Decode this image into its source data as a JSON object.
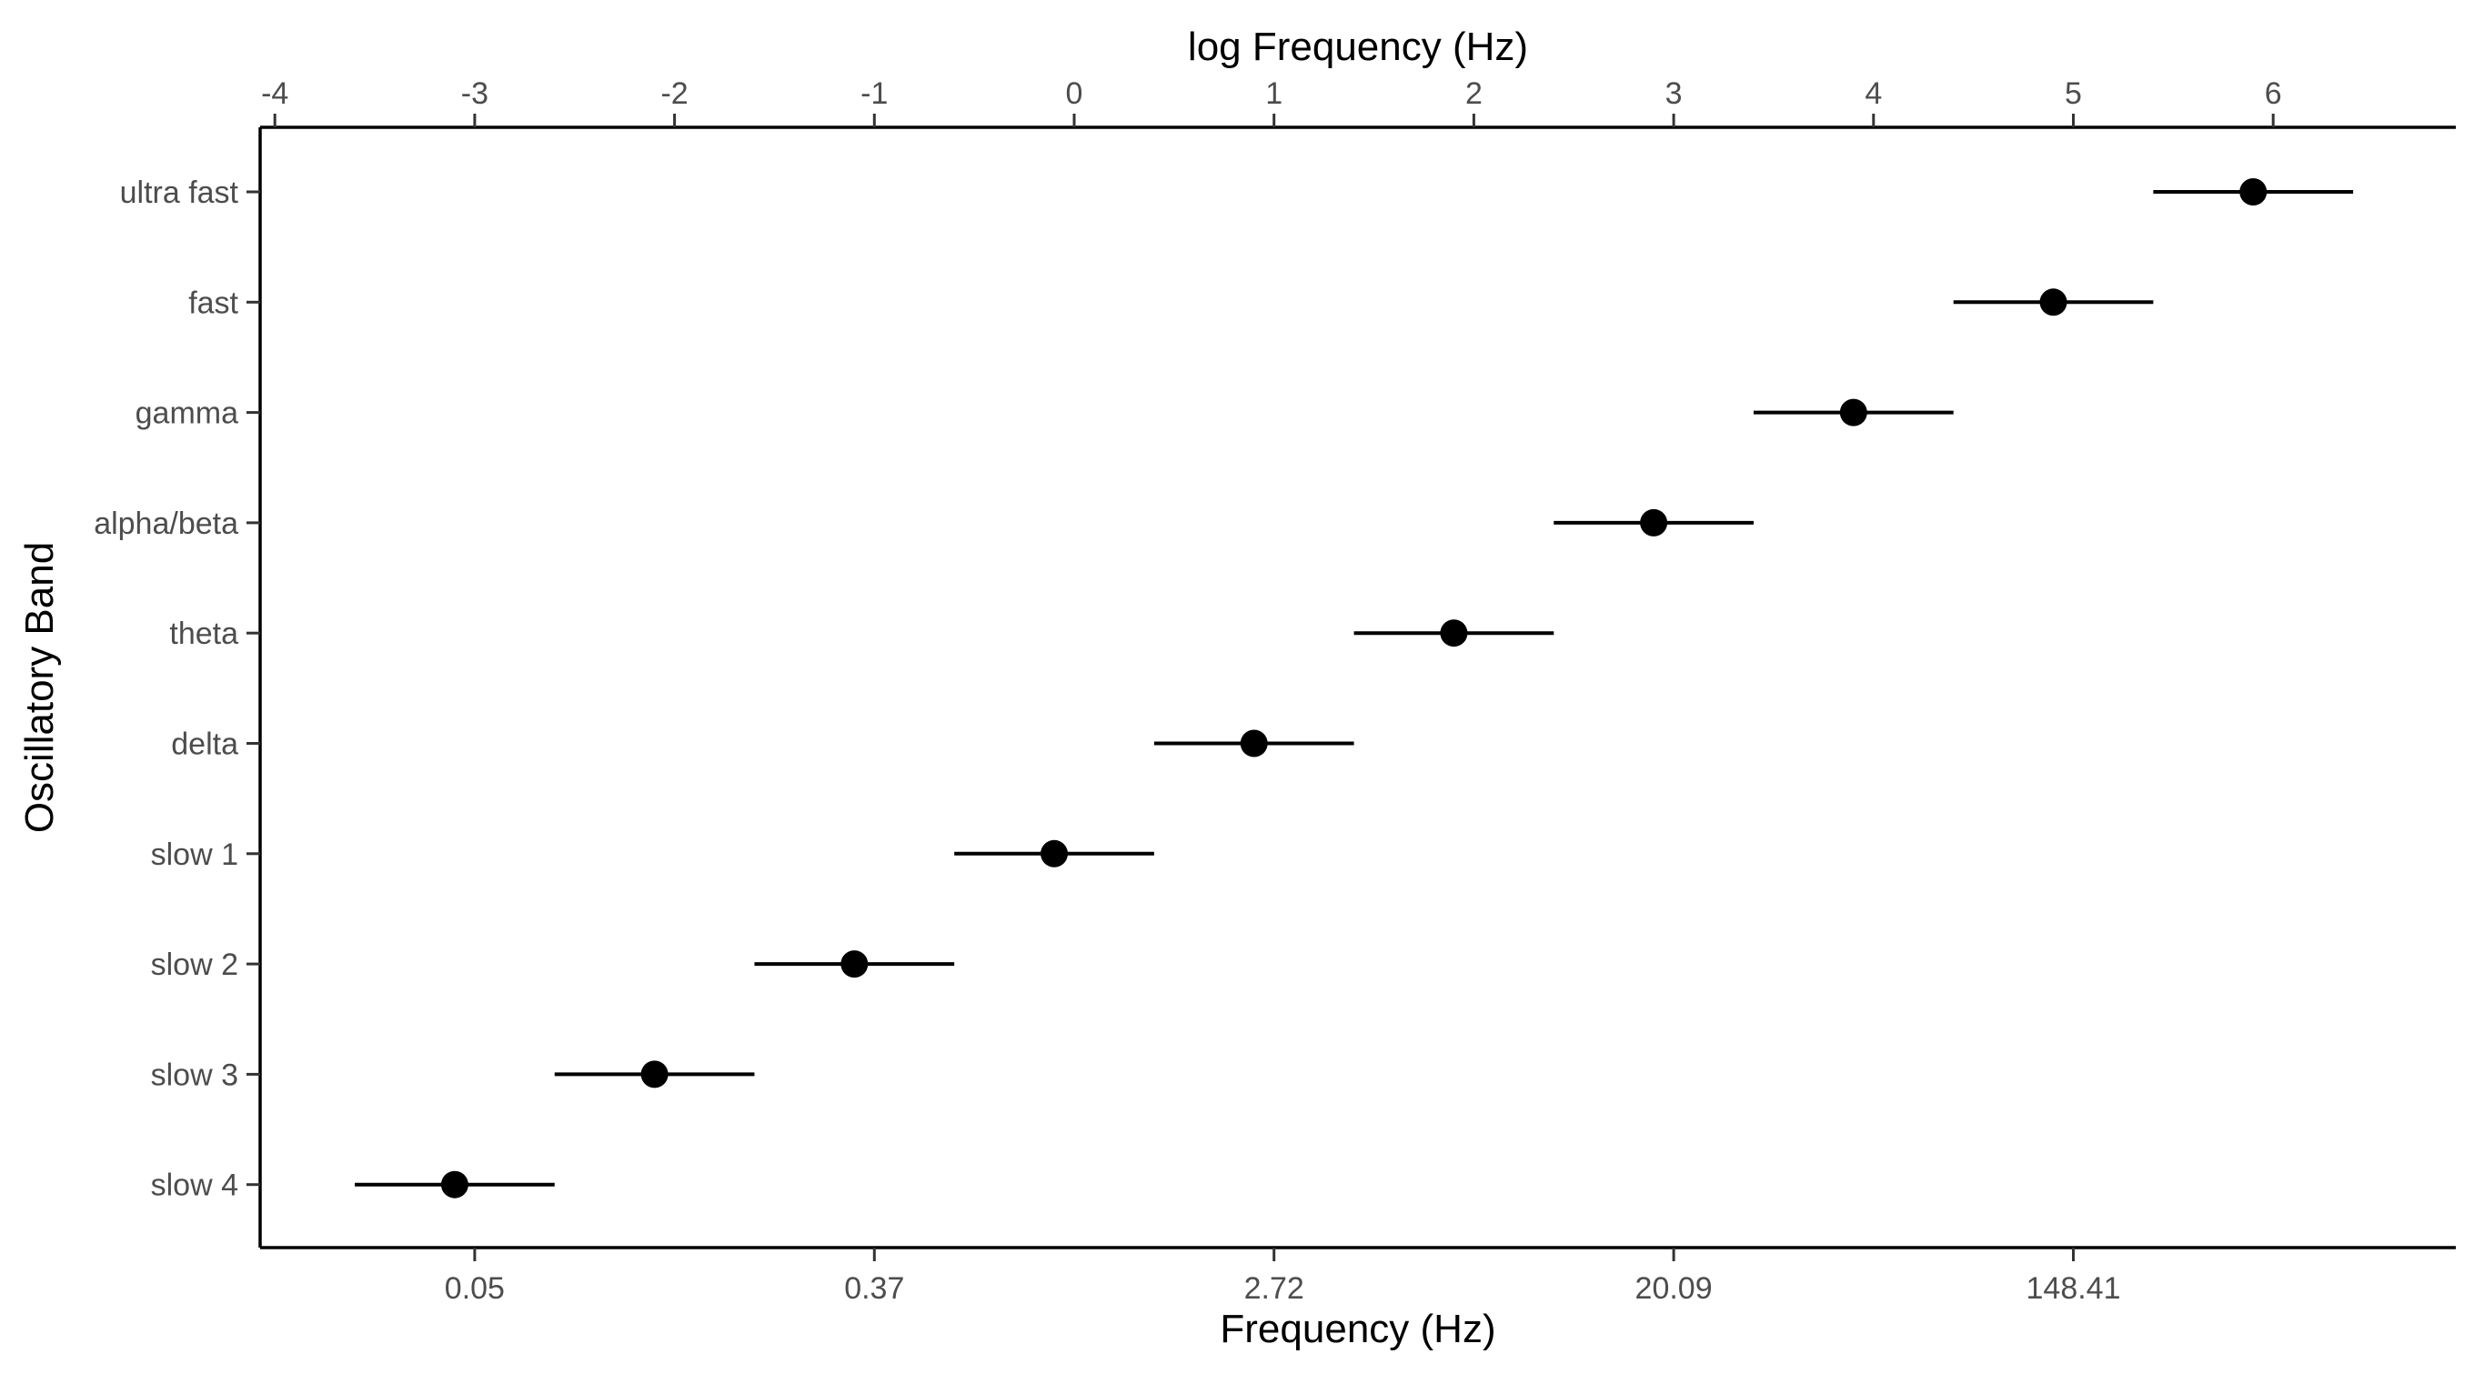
{
  "chart_data": {
    "type": "scatter",
    "subtype": "point-range",
    "xlabel": "Frequency (Hz)",
    "xlabel_secondary": "log Frequency (Hz)",
    "ylabel": "Oscillatory Band",
    "x_scale": "log (natural) — bottom axis in Hz, top axis in ln(Hz)",
    "xlim_log": [
      -4.1,
      6.9
    ],
    "bottom_ticks": [
      {
        "log": -3,
        "label": "0.05"
      },
      {
        "log": -1,
        "label": "0.37"
      },
      {
        "log": 1,
        "label": "2.72"
      },
      {
        "log": 3,
        "label": "20.09"
      },
      {
        "log": 5,
        "label": "148.41"
      }
    ],
    "top_ticks": [
      {
        "log": -4,
        "label": "-4"
      },
      {
        "log": -3,
        "label": "-3"
      },
      {
        "log": -2,
        "label": "-2"
      },
      {
        "log": -1,
        "label": "-1"
      },
      {
        "log": 0,
        "label": "0"
      },
      {
        "log": 1,
        "label": "1"
      },
      {
        "log": 2,
        "label": "2"
      },
      {
        "log": 3,
        "label": "3"
      },
      {
        "log": 4,
        "label": "4"
      },
      {
        "log": 5,
        "label": "5"
      },
      {
        "log": 6,
        "label": "6"
      }
    ],
    "categories": [
      "ultra fast",
      "fast",
      "gamma",
      "alpha/beta",
      "theta",
      "delta",
      "slow 1",
      "slow 2",
      "slow 3",
      "slow 4"
    ],
    "points": [
      {
        "band": "ultra fast",
        "center_log": 5.9,
        "low_log": 5.4,
        "high_log": 6.4
      },
      {
        "band": "fast",
        "center_log": 4.9,
        "low_log": 4.4,
        "high_log": 5.4
      },
      {
        "band": "gamma",
        "center_log": 3.9,
        "low_log": 3.4,
        "high_log": 4.4
      },
      {
        "band": "alpha/beta",
        "center_log": 2.9,
        "low_log": 2.4,
        "high_log": 3.4
      },
      {
        "band": "theta",
        "center_log": 1.9,
        "low_log": 1.4,
        "high_log": 2.4
      },
      {
        "band": "delta",
        "center_log": 0.9,
        "low_log": 0.4,
        "high_log": 1.4
      },
      {
        "band": "slow 1",
        "center_log": -0.1,
        "low_log": -0.6,
        "high_log": 0.4
      },
      {
        "band": "slow 2",
        "center_log": -1.1,
        "low_log": -1.6,
        "high_log": -0.6
      },
      {
        "band": "slow 3",
        "center_log": -2.1,
        "low_log": -2.6,
        "high_log": -1.6
      },
      {
        "band": "slow 4",
        "center_log": -3.1,
        "low_log": -3.6,
        "high_log": -2.6
      }
    ],
    "grid": false,
    "legend": "none",
    "colors": {
      "point": "#000000",
      "axis": "#000000",
      "tick_text": "#4d4d4d"
    }
  }
}
